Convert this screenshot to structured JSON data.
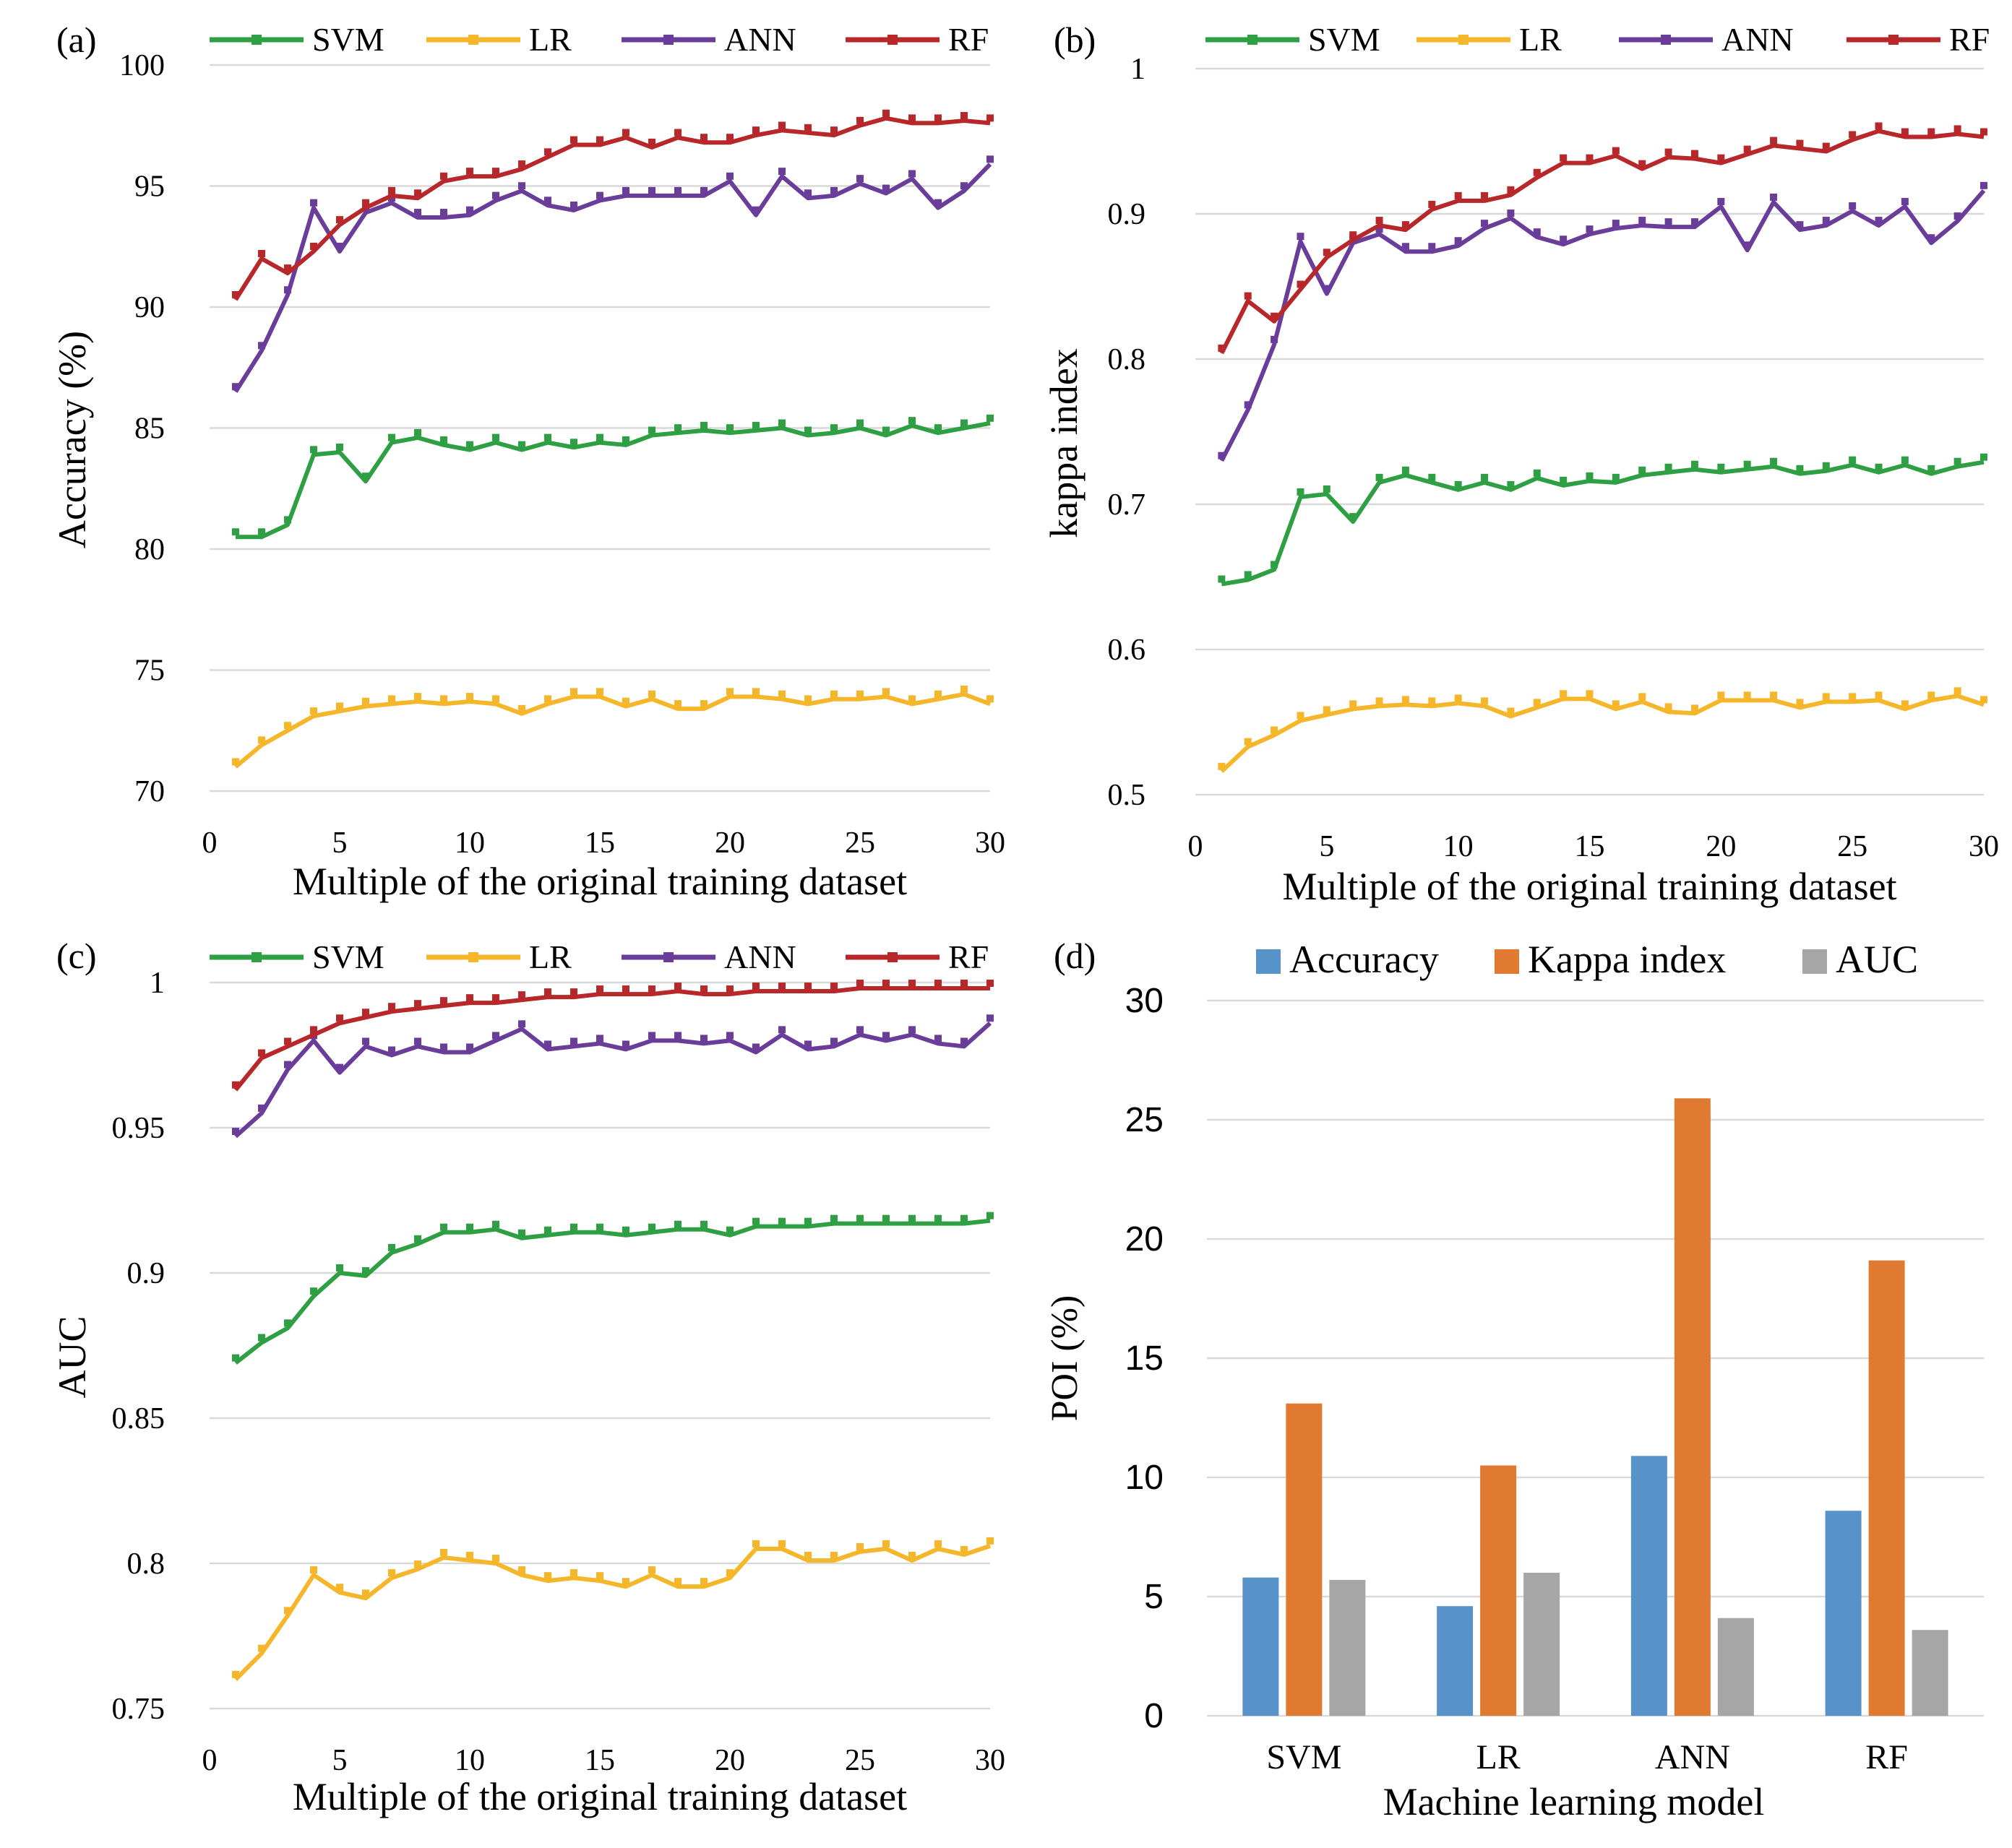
{
  "colors": {
    "svm": "#2ea043",
    "lr": "#f5b62a",
    "ann": "#6a3d9a",
    "rf": "#b8272a",
    "accuracy_bar": "#5793c9",
    "kappa_bar": "#e07a30",
    "auc_bar": "#a6a6a6",
    "grid": "#d9d9d9"
  },
  "chart_data": [
    {
      "panel": "(a)",
      "type": "line",
      "title": "",
      "xlabel": "Multiple of the original training dataset",
      "ylabel": "Accuracy (%)",
      "xlim": [
        0,
        30
      ],
      "ylim": [
        70,
        100
      ],
      "xticks": [
        0,
        5,
        10,
        15,
        20,
        25,
        30
      ],
      "yticks": [
        70,
        75,
        80,
        85,
        90,
        95,
        100
      ],
      "grid": true,
      "legend_position": "top",
      "x": [
        1,
        2,
        3,
        4,
        5,
        6,
        7,
        8,
        9,
        10,
        11,
        12,
        13,
        14,
        15,
        16,
        17,
        18,
        19,
        20,
        21,
        22,
        23,
        24,
        25,
        26,
        27,
        28,
        29,
        30
      ],
      "series": [
        {
          "name": "SVM",
          "key": "svm",
          "values": [
            80.5,
            80.5,
            81.0,
            83.9,
            84.0,
            82.8,
            84.4,
            84.6,
            84.3,
            84.1,
            84.4,
            84.1,
            84.4,
            84.2,
            84.4,
            84.3,
            84.7,
            84.8,
            84.9,
            84.8,
            84.9,
            85.0,
            84.7,
            84.8,
            85.0,
            84.7,
            85.1,
            84.8,
            85.0,
            85.2
          ]
        },
        {
          "name": "LR",
          "key": "lr",
          "values": [
            71.0,
            71.9,
            72.5,
            73.1,
            73.3,
            73.5,
            73.6,
            73.7,
            73.6,
            73.7,
            73.6,
            73.2,
            73.6,
            73.9,
            73.9,
            73.5,
            73.8,
            73.4,
            73.4,
            73.9,
            73.9,
            73.8,
            73.6,
            73.8,
            73.8,
            73.9,
            73.6,
            73.8,
            74.0,
            73.6
          ]
        },
        {
          "name": "ANN",
          "key": "ann",
          "values": [
            86.5,
            88.2,
            90.5,
            94.1,
            92.3,
            93.9,
            94.3,
            93.7,
            93.7,
            93.8,
            94.4,
            94.8,
            94.2,
            94.0,
            94.4,
            94.6,
            94.6,
            94.6,
            94.6,
            95.2,
            93.8,
            95.4,
            94.5,
            94.6,
            95.1,
            94.7,
            95.3,
            94.1,
            94.8,
            95.9
          ]
        },
        {
          "name": "RF",
          "key": "rf",
          "values": [
            90.3,
            92.0,
            91.4,
            92.3,
            93.4,
            94.1,
            94.6,
            94.5,
            95.2,
            95.4,
            95.4,
            95.7,
            96.2,
            96.7,
            96.7,
            97.0,
            96.6,
            97.0,
            96.8,
            96.8,
            97.1,
            97.3,
            97.2,
            97.1,
            97.5,
            97.8,
            97.6,
            97.6,
            97.7,
            97.6
          ]
        }
      ]
    },
    {
      "panel": "(b)",
      "type": "line",
      "title": "",
      "xlabel": "Multiple of the original training dataset",
      "ylabel": "kappa index",
      "xlim": [
        0,
        30
      ],
      "ylim": [
        0.5,
        1.0
      ],
      "xticks": [
        0,
        5,
        10,
        15,
        20,
        25,
        30
      ],
      "yticks": [
        0.5,
        0.6,
        0.7,
        0.8,
        0.9,
        1
      ],
      "ytick_labels": [
        "0.5",
        "0.6",
        "0.7",
        "0.8",
        "0.9",
        "1"
      ],
      "grid": true,
      "legend_position": "top",
      "x": [
        1,
        2,
        3,
        4,
        5,
        6,
        7,
        8,
        9,
        10,
        11,
        12,
        13,
        14,
        15,
        16,
        17,
        18,
        19,
        20,
        21,
        22,
        23,
        24,
        25,
        26,
        27,
        28,
        29,
        30
      ],
      "series": [
        {
          "name": "SVM",
          "key": "svm",
          "values": [
            0.645,
            0.648,
            0.655,
            0.705,
            0.707,
            0.688,
            0.715,
            0.72,
            0.715,
            0.71,
            0.715,
            0.71,
            0.718,
            0.713,
            0.716,
            0.715,
            0.72,
            0.722,
            0.724,
            0.722,
            0.724,
            0.726,
            0.721,
            0.723,
            0.727,
            0.722,
            0.727,
            0.721,
            0.726,
            0.729
          ]
        },
        {
          "name": "LR",
          "key": "lr",
          "values": [
            0.516,
            0.533,
            0.541,
            0.551,
            0.555,
            0.559,
            0.561,
            0.562,
            0.561,
            0.563,
            0.561,
            0.554,
            0.56,
            0.566,
            0.566,
            0.559,
            0.564,
            0.557,
            0.556,
            0.565,
            0.565,
            0.565,
            0.56,
            0.564,
            0.564,
            0.565,
            0.559,
            0.565,
            0.568,
            0.562
          ]
        },
        {
          "name": "ANN",
          "key": "ann",
          "values": [
            0.73,
            0.765,
            0.81,
            0.881,
            0.845,
            0.88,
            0.886,
            0.874,
            0.874,
            0.878,
            0.89,
            0.897,
            0.884,
            0.879,
            0.886,
            0.89,
            0.892,
            0.891,
            0.891,
            0.905,
            0.875,
            0.908,
            0.889,
            0.892,
            0.902,
            0.892,
            0.905,
            0.88,
            0.895,
            0.916
          ]
        },
        {
          "name": "RF",
          "key": "rf",
          "values": [
            0.804,
            0.84,
            0.826,
            0.848,
            0.87,
            0.882,
            0.892,
            0.889,
            0.903,
            0.909,
            0.909,
            0.913,
            0.925,
            0.935,
            0.935,
            0.94,
            0.931,
            0.939,
            0.938,
            0.935,
            0.941,
            0.947,
            0.945,
            0.943,
            0.951,
            0.957,
            0.953,
            0.953,
            0.955,
            0.953
          ]
        }
      ]
    },
    {
      "panel": "(c)",
      "type": "line",
      "title": "",
      "xlabel": "Multiple of the original training dataset",
      "ylabel": "AUC",
      "xlim": [
        0,
        30
      ],
      "ylim": [
        0.75,
        1.0
      ],
      "xticks": [
        0,
        5,
        10,
        15,
        20,
        25,
        30
      ],
      "yticks": [
        0.75,
        0.8,
        0.85,
        0.9,
        0.95,
        1
      ],
      "ytick_labels": [
        "0.75",
        "0.8",
        "0.85",
        "0.9",
        "0.95",
        "1"
      ],
      "grid": true,
      "legend_position": "top",
      "x": [
        1,
        2,
        3,
        4,
        5,
        6,
        7,
        8,
        9,
        10,
        11,
        12,
        13,
        14,
        15,
        16,
        17,
        18,
        19,
        20,
        21,
        22,
        23,
        24,
        25,
        26,
        27,
        28,
        29,
        30
      ],
      "series": [
        {
          "name": "SVM",
          "key": "svm",
          "values": [
            0.869,
            0.876,
            0.881,
            0.892,
            0.9,
            0.899,
            0.907,
            0.91,
            0.914,
            0.914,
            0.915,
            0.912,
            0.913,
            0.914,
            0.914,
            0.913,
            0.914,
            0.915,
            0.915,
            0.913,
            0.916,
            0.916,
            0.916,
            0.917,
            0.917,
            0.917,
            0.917,
            0.917,
            0.917,
            0.918
          ]
        },
        {
          "name": "LR",
          "key": "lr",
          "values": [
            0.76,
            0.769,
            0.782,
            0.796,
            0.79,
            0.788,
            0.795,
            0.798,
            0.802,
            0.801,
            0.8,
            0.796,
            0.794,
            0.795,
            0.794,
            0.792,
            0.796,
            0.792,
            0.792,
            0.795,
            0.805,
            0.805,
            0.801,
            0.801,
            0.804,
            0.805,
            0.801,
            0.805,
            0.803,
            0.806
          ]
        },
        {
          "name": "ANN",
          "key": "ann",
          "values": [
            0.947,
            0.955,
            0.97,
            0.98,
            0.969,
            0.978,
            0.975,
            0.978,
            0.976,
            0.976,
            0.98,
            0.984,
            0.977,
            0.978,
            0.979,
            0.977,
            0.98,
            0.98,
            0.979,
            0.98,
            0.976,
            0.982,
            0.977,
            0.978,
            0.982,
            0.98,
            0.982,
            0.979,
            0.978,
            0.986
          ]
        },
        {
          "name": "RF",
          "key": "rf",
          "values": [
            0.963,
            0.974,
            0.978,
            0.982,
            0.986,
            0.988,
            0.99,
            0.991,
            0.992,
            0.993,
            0.993,
            0.994,
            0.995,
            0.995,
            0.996,
            0.996,
            0.996,
            0.997,
            0.996,
            0.996,
            0.997,
            0.997,
            0.997,
            0.997,
            0.998,
            0.998,
            0.998,
            0.998,
            0.998,
            0.998
          ]
        }
      ]
    },
    {
      "panel": "(d)",
      "type": "bar",
      "title": "",
      "xlabel": "Machine learning model",
      "ylabel": "POI (%)",
      "ylim": [
        0,
        30
      ],
      "yticks": [
        0,
        5,
        10,
        15,
        20,
        25,
        30
      ],
      "grid": true,
      "legend_position": "top",
      "categories": [
        "SVM",
        "LR",
        "ANN",
        "RF"
      ],
      "series": [
        {
          "name": "Accuracy",
          "key": "accuracy_bar",
          "values": [
            5.8,
            4.6,
            10.9,
            8.6
          ]
        },
        {
          "name": "Kappa index",
          "key": "kappa_bar",
          "values": [
            13.1,
            10.5,
            25.9,
            19.1
          ]
        },
        {
          "name": "AUC",
          "key": "auc_bar",
          "values": [
            5.7,
            6.0,
            4.1,
            3.6
          ]
        }
      ]
    }
  ]
}
